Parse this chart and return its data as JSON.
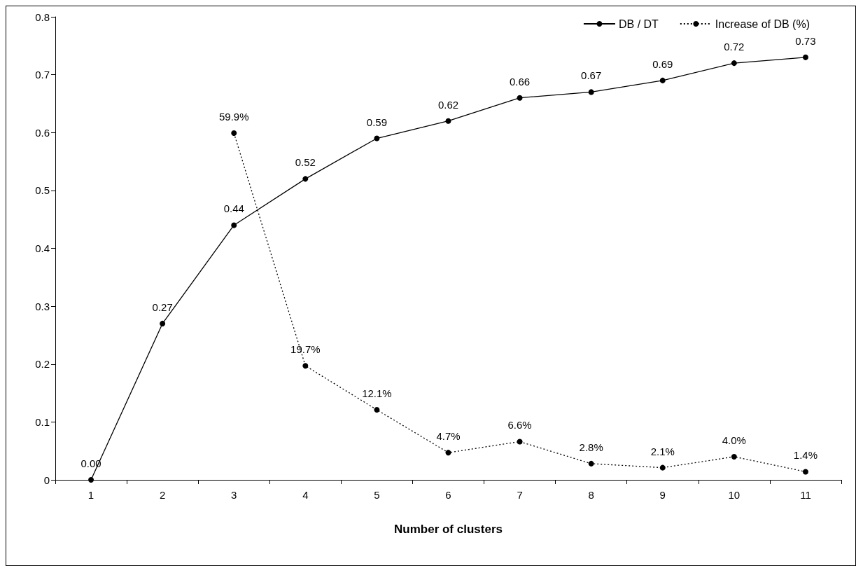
{
  "chart_data": {
    "type": "line",
    "xlabel": "Number of clusters",
    "categories": [
      "1",
      "2",
      "3",
      "4",
      "5",
      "6",
      "7",
      "8",
      "9",
      "10",
      "11"
    ],
    "series": [
      {
        "name": "DB / DT",
        "color": "#000000",
        "line_style": "solid",
        "values": [
          0.0,
          0.27,
          0.44,
          0.52,
          0.59,
          0.62,
          0.66,
          0.67,
          0.69,
          0.72,
          0.73
        ],
        "value_labels": [
          "0.00",
          "0.27",
          "0.44",
          "0.52",
          "0.59",
          "0.62",
          "0.66",
          "0.67",
          "0.69",
          "0.72",
          "0.73"
        ]
      },
      {
        "name": "Increase of DB (%)",
        "color": "#000000",
        "line_style": "dotted",
        "values": [
          null,
          null,
          0.599,
          0.197,
          0.121,
          0.047,
          0.066,
          0.028,
          0.021,
          0.04,
          0.014
        ],
        "value_labels": [
          null,
          null,
          "59.9%",
          "19.7%",
          "12.1%",
          "4.7%",
          "6.6%",
          "2.8%",
          "2.1%",
          "4.0%",
          "1.4%"
        ]
      }
    ],
    "ylim": [
      0,
      0.8
    ],
    "yticks": [
      0,
      0.1,
      0.2,
      0.3,
      0.4,
      0.5,
      0.6,
      0.7,
      0.8
    ],
    "grid": false,
    "legend": "top right",
    "marker": "circle"
  }
}
